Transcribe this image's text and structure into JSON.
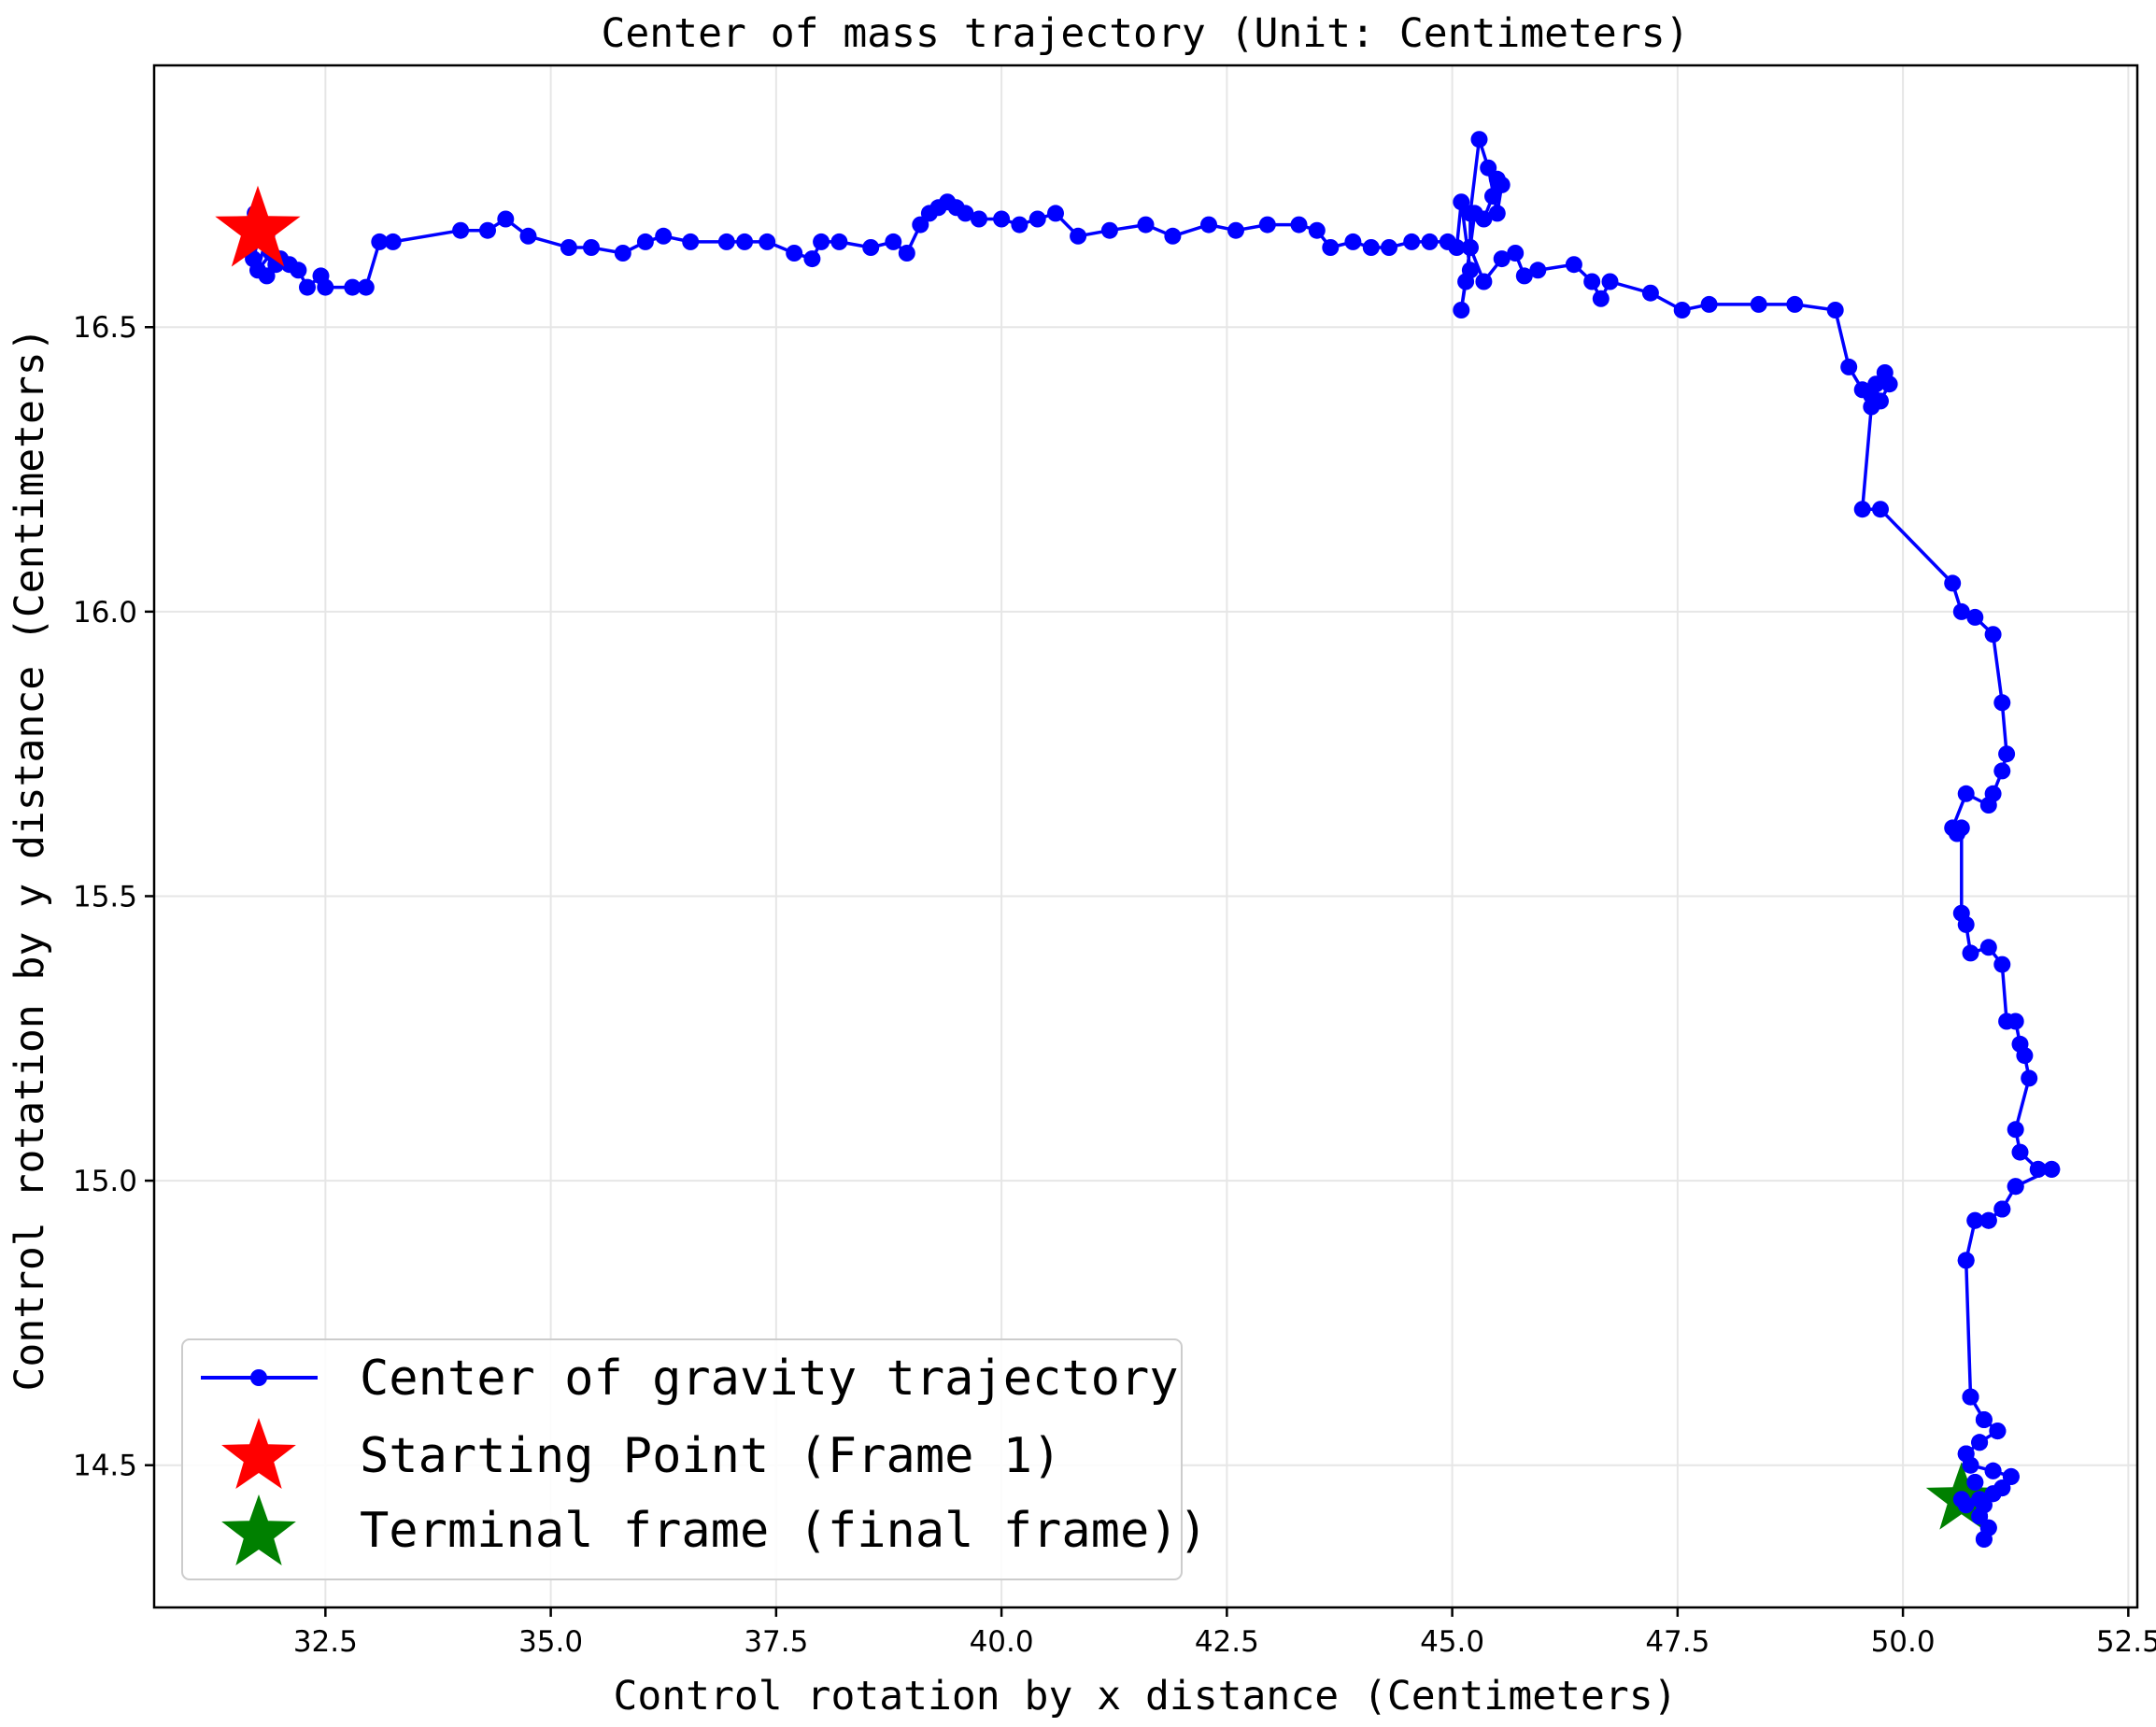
{
  "chart_data": {
    "type": "line",
    "title": "Center of mass trajectory (Unit: Centimeters)",
    "xlabel": "Control rotation by x distance (Centimeters)",
    "ylabel": "Control rotation by y distance (Centimeters)",
    "xlim": [
      30.6,
      52.6
    ],
    "ylim": [
      14.25,
      16.96
    ],
    "x_ticks": [
      32.5,
      35.0,
      37.5,
      40.0,
      42.5,
      45.0,
      47.5,
      50.0,
      52.5
    ],
    "y_ticks": [
      14.5,
      15.0,
      15.5,
      16.0,
      16.5
    ],
    "x_tick_labels": [
      "32.5",
      "35.0",
      "37.5",
      "40.0",
      "42.5",
      "45.0",
      "47.5",
      "50.0",
      "52.5"
    ],
    "y_tick_labels": [
      "14.5",
      "15.0",
      "15.5",
      "16.0",
      "16.5"
    ],
    "grid": true,
    "legend": {
      "placement": "lower-left",
      "entries": [
        "Center of gravity trajectory",
        "Starting Point (Frame 1)",
        "Terminal frame (final frame))"
      ]
    },
    "colors": {
      "trajectory": "#0000ff",
      "start": "#ff0000",
      "end": "#008000"
    },
    "start_point": [
      31.75,
      16.67
    ],
    "end_point": [
      50.65,
      14.44
    ],
    "series": [
      {
        "name": "Center of gravity trajectory",
        "points": [
          [
            31.75,
            16.67
          ],
          [
            31.7,
            16.62
          ],
          [
            31.8,
            16.68
          ],
          [
            31.65,
            16.64
          ],
          [
            31.85,
            16.66
          ],
          [
            31.75,
            16.6
          ],
          [
            31.9,
            16.63
          ],
          [
            31.72,
            16.7
          ],
          [
            31.95,
            16.61
          ],
          [
            31.85,
            16.59
          ],
          [
            32.0,
            16.62
          ],
          [
            32.1,
            16.61
          ],
          [
            32.2,
            16.6
          ],
          [
            32.3,
            16.57
          ],
          [
            32.45,
            16.59
          ],
          [
            32.5,
            16.57
          ],
          [
            32.8,
            16.57
          ],
          [
            32.95,
            16.57
          ],
          [
            33.1,
            16.65
          ],
          [
            33.25,
            16.65
          ],
          [
            34.0,
            16.67
          ],
          [
            34.3,
            16.67
          ],
          [
            34.5,
            16.69
          ],
          [
            34.75,
            16.66
          ],
          [
            35.2,
            16.64
          ],
          [
            35.45,
            16.64
          ],
          [
            35.8,
            16.63
          ],
          [
            36.05,
            16.65
          ],
          [
            36.25,
            16.66
          ],
          [
            36.55,
            16.65
          ],
          [
            36.95,
            16.65
          ],
          [
            37.15,
            16.65
          ],
          [
            37.4,
            16.65
          ],
          [
            37.7,
            16.63
          ],
          [
            37.9,
            16.62
          ],
          [
            38.0,
            16.65
          ],
          [
            38.2,
            16.65
          ],
          [
            38.55,
            16.64
          ],
          [
            38.8,
            16.65
          ],
          [
            38.95,
            16.63
          ],
          [
            39.1,
            16.68
          ],
          [
            39.2,
            16.7
          ],
          [
            39.3,
            16.71
          ],
          [
            39.4,
            16.72
          ],
          [
            39.5,
            16.71
          ],
          [
            39.6,
            16.7
          ],
          [
            39.75,
            16.69
          ],
          [
            40.0,
            16.69
          ],
          [
            40.2,
            16.68
          ],
          [
            40.4,
            16.69
          ],
          [
            40.6,
            16.7
          ],
          [
            40.85,
            16.66
          ],
          [
            41.2,
            16.67
          ],
          [
            41.6,
            16.68
          ],
          [
            41.9,
            16.66
          ],
          [
            42.3,
            16.68
          ],
          [
            42.6,
            16.67
          ],
          [
            42.95,
            16.68
          ],
          [
            43.3,
            16.68
          ],
          [
            43.5,
            16.67
          ],
          [
            43.65,
            16.64
          ],
          [
            43.9,
            16.65
          ],
          [
            44.1,
            16.64
          ],
          [
            44.3,
            16.64
          ],
          [
            44.55,
            16.65
          ],
          [
            44.75,
            16.65
          ],
          [
            44.95,
            16.65
          ],
          [
            45.05,
            16.64
          ],
          [
            45.1,
            16.72
          ],
          [
            45.2,
            16.6
          ],
          [
            45.15,
            16.58
          ],
          [
            45.1,
            16.53
          ],
          [
            45.2,
            16.64
          ],
          [
            45.2,
            16.7
          ],
          [
            45.3,
            16.83
          ],
          [
            45.4,
            16.78
          ],
          [
            45.5,
            16.7
          ],
          [
            45.55,
            16.75
          ],
          [
            45.5,
            16.76
          ],
          [
            45.45,
            16.73
          ],
          [
            45.35,
            16.69
          ],
          [
            45.25,
            16.7
          ],
          [
            45.2,
            16.64
          ],
          [
            45.35,
            16.58
          ],
          [
            45.55,
            16.62
          ],
          [
            45.7,
            16.63
          ],
          [
            45.8,
            16.59
          ],
          [
            45.95,
            16.6
          ],
          [
            46.35,
            16.61
          ],
          [
            46.55,
            16.58
          ],
          [
            46.65,
            16.55
          ],
          [
            46.75,
            16.58
          ],
          [
            47.2,
            16.56
          ],
          [
            47.55,
            16.53
          ],
          [
            47.85,
            16.54
          ],
          [
            48.4,
            16.54
          ],
          [
            48.8,
            16.54
          ],
          [
            49.25,
            16.53
          ],
          [
            49.4,
            16.43
          ],
          [
            49.55,
            16.39
          ],
          [
            49.7,
            16.4
          ],
          [
            49.65,
            16.38
          ],
          [
            49.8,
            16.42
          ],
          [
            49.85,
            16.4
          ],
          [
            49.75,
            16.37
          ],
          [
            49.65,
            16.36
          ],
          [
            49.55,
            16.18
          ],
          [
            49.75,
            16.18
          ],
          [
            50.55,
            16.05
          ],
          [
            50.65,
            16.0
          ],
          [
            50.8,
            15.99
          ],
          [
            51.0,
            15.96
          ],
          [
            51.1,
            15.84
          ],
          [
            51.15,
            15.75
          ],
          [
            51.1,
            15.72
          ],
          [
            51.0,
            15.68
          ],
          [
            50.95,
            15.66
          ],
          [
            50.7,
            15.68
          ],
          [
            50.55,
            15.62
          ],
          [
            50.6,
            15.61
          ],
          [
            50.65,
            15.62
          ],
          [
            50.65,
            15.47
          ],
          [
            50.7,
            15.45
          ],
          [
            50.75,
            15.4
          ],
          [
            50.95,
            15.41
          ],
          [
            51.1,
            15.38
          ],
          [
            51.15,
            15.28
          ],
          [
            51.25,
            15.28
          ],
          [
            51.3,
            15.24
          ],
          [
            51.35,
            15.22
          ],
          [
            51.4,
            15.18
          ],
          [
            51.25,
            15.09
          ],
          [
            51.3,
            15.05
          ],
          [
            51.5,
            15.02
          ],
          [
            51.65,
            15.02
          ],
          [
            51.25,
            14.99
          ],
          [
            51.1,
            14.95
          ],
          [
            50.95,
            14.93
          ],
          [
            50.8,
            14.93
          ],
          [
            50.7,
            14.86
          ],
          [
            50.75,
            14.62
          ],
          [
            50.9,
            14.58
          ],
          [
            51.05,
            14.56
          ],
          [
            50.85,
            14.54
          ],
          [
            50.7,
            14.52
          ],
          [
            50.75,
            14.5
          ],
          [
            51.0,
            14.49
          ],
          [
            51.2,
            14.48
          ],
          [
            51.1,
            14.46
          ],
          [
            51.0,
            14.45
          ],
          [
            50.9,
            14.43
          ],
          [
            50.85,
            14.41
          ],
          [
            50.95,
            14.39
          ],
          [
            50.9,
            14.37
          ],
          [
            50.85,
            14.44
          ],
          [
            50.8,
            14.47
          ],
          [
            50.7,
            14.43
          ],
          [
            50.65,
            14.44
          ]
        ]
      }
    ]
  }
}
